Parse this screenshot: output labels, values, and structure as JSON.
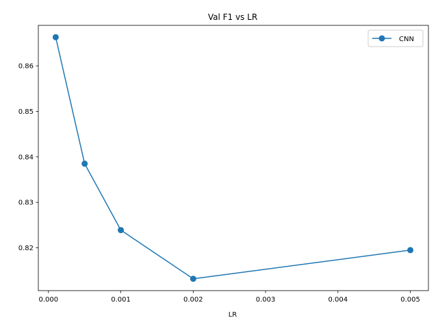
{
  "chart_data": {
    "type": "line",
    "title": "Val F1 vs LR",
    "xlabel": "LR",
    "ylabel": "",
    "xlim": [
      -0.00014,
      0.00525
    ],
    "ylim": [
      0.8106,
      0.8689
    ],
    "x_ticks": [
      0.0,
      0.001,
      0.002,
      0.003,
      0.004,
      0.005
    ],
    "x_tick_labels": [
      "0.000",
      "0.001",
      "0.002",
      "0.003",
      "0.004",
      "0.005"
    ],
    "y_ticks": [
      0.82,
      0.83,
      0.84,
      0.85,
      0.86
    ],
    "y_tick_labels": [
      "0.82",
      "0.83",
      "0.84",
      "0.85",
      "0.86"
    ],
    "grid": false,
    "legend_position": "top-right",
    "series": [
      {
        "name": "CNN",
        "color": "#1f77b4",
        "marker": "circle",
        "x": [
          0.0001,
          0.0005,
          0.001,
          0.002,
          0.005
        ],
        "y": [
          0.8663,
          0.8385,
          0.8239,
          0.8132,
          0.8195
        ]
      }
    ]
  }
}
